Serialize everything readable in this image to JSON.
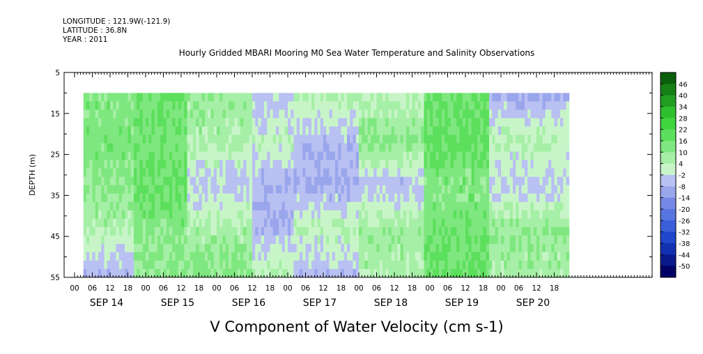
{
  "header": {
    "longitude": "LONGITUDE : 121.9W(-121.9)",
    "latitude": "LATITUDE : 36.8N",
    "year": "YEAR : 2011"
  },
  "chart_data": {
    "type": "heatmap",
    "title": "Hourly Gridded MBARI Mooring M0 Sea Water Temperature and Salinity Observations",
    "xlabel": "V Component of Water Velocity (cm s-1)",
    "ylabel": "DEPTH (m)",
    "ylim": [
      5,
      55
    ],
    "y_reversed": true,
    "y_ticks": [
      5,
      15,
      25,
      35,
      45,
      55
    ],
    "data_depth_range": [
      10,
      55
    ],
    "x_hour_ticks": [
      "00",
      "06",
      "12",
      "18",
      "00",
      "06",
      "12",
      "18",
      "00",
      "06",
      "12",
      "18",
      "00",
      "06",
      "12",
      "18",
      "00",
      "06",
      "12",
      "18",
      "00",
      "06",
      "12",
      "18",
      "00",
      "06",
      "12",
      "18"
    ],
    "x_day_labels": [
      "SEP 14",
      "SEP 15",
      "SEP 16",
      "SEP 17",
      "SEP 18",
      "SEP 19",
      "SEP 20"
    ],
    "data_start_hour": 3,
    "total_hours": 167,
    "colorbar": {
      "levels": [
        -50,
        -44,
        -38,
        -32,
        -26,
        -20,
        -14,
        -8,
        -2,
        4,
        10,
        16,
        22,
        28,
        34,
        40,
        46
      ],
      "labels": [
        "46",
        "40",
        "34",
        "28",
        "22",
        "16",
        "10",
        "4",
        "-2",
        "-8",
        "-14",
        "-20",
        "-26",
        "-32",
        "-38",
        "-44",
        "-50"
      ],
      "colors_low_to_high": [
        "#000066",
        "#0a1a8c",
        "#1230b0",
        "#2047cc",
        "#3a5fd8",
        "#5874e0",
        "#7688e6",
        "#9aa6ec",
        "#b9c0f2",
        "#c8f5c8",
        "#a6efa6",
        "#7fe77f",
        "#5cdf5c",
        "#3ed53e",
        "#2ec02e",
        "#229f22",
        "#167f16",
        "#0b5f0b"
      ]
    },
    "series": [
      {
        "hour_range": [
          3,
          20
        ],
        "values": [
          12,
          14,
          10,
          6,
          -6
        ]
      },
      {
        "hour_range": [
          20,
          38
        ],
        "values": [
          16,
          14,
          18,
          12,
          10
        ]
      },
      {
        "hour_range": [
          38,
          60
        ],
        "values": [
          8,
          6,
          -4,
          6,
          12
        ]
      },
      {
        "hour_range": [
          60,
          74
        ],
        "values": [
          -4,
          2,
          -8,
          -6,
          4
        ]
      },
      {
        "hour_range": [
          74,
          96
        ],
        "values": [
          4,
          -6,
          -8,
          4,
          -6
        ]
      },
      {
        "hour_range": [
          96,
          118
        ],
        "values": [
          2,
          12,
          -6,
          8,
          6
        ]
      },
      {
        "hour_range": [
          118,
          140
        ],
        "values": [
          16,
          18,
          12,
          14,
          16
        ]
      },
      {
        "hour_range": [
          140,
          167
        ],
        "values": [
          -8,
          4,
          -4,
          10,
          6
        ]
      }
    ]
  }
}
